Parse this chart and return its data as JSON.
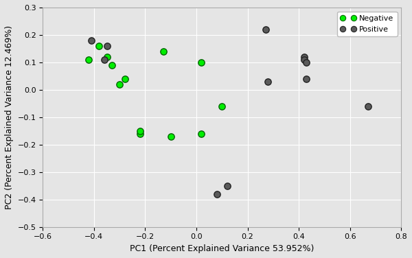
{
  "negative_x": [
    -0.42,
    -0.38,
    -0.35,
    -0.33,
    -0.3,
    -0.28,
    -0.22,
    -0.22,
    -0.13,
    -0.1,
    0.02,
    0.02,
    0.1
  ],
  "negative_y": [
    0.11,
    0.16,
    0.12,
    0.09,
    0.02,
    0.04,
    -0.16,
    -0.15,
    0.14,
    -0.17,
    0.1,
    -0.16,
    -0.06
  ],
  "positive_x": [
    -0.41,
    -0.35,
    -0.36,
    0.27,
    0.28,
    0.42,
    0.42,
    0.43,
    0.43,
    0.67,
    0.08,
    0.12
  ],
  "positive_y": [
    0.18,
    0.16,
    0.11,
    0.22,
    0.03,
    0.12,
    0.11,
    0.04,
    0.1,
    -0.06,
    -0.38,
    -0.35
  ],
  "negative_color_face": "#00ee00",
  "negative_color_edge": "#006600",
  "positive_color_face": "#5a5a5a",
  "positive_color_edge": "#222222",
  "bg_color": "#e5e5e5",
  "xlabel": "PC1 (Percent Explained Variance 53.952%)",
  "ylabel": "PC2 (Percent Explained Variance 12.469%)",
  "xlim": [
    -0.6,
    0.8
  ],
  "ylim": [
    -0.5,
    0.3
  ],
  "xticks": [
    -0.6,
    -0.4,
    -0.2,
    0.0,
    0.2,
    0.4,
    0.6,
    0.8
  ],
  "yticks": [
    -0.5,
    -0.4,
    -0.3,
    -0.2,
    -0.1,
    0.0,
    0.1,
    0.2,
    0.3
  ],
  "marker_size": 45,
  "linewidth": 1.0,
  "grid_color": "#ffffff",
  "legend_labels": [
    "Negative",
    "Positive"
  ],
  "tick_fontsize": 8,
  "label_fontsize": 9
}
